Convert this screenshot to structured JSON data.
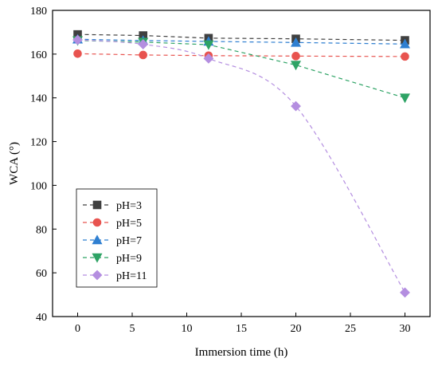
{
  "chart_data": {
    "type": "line",
    "title": "",
    "xlabel": "Immersion time (h)",
    "ylabel": "WCA (°)",
    "xlim": [
      -2.3,
      32.3
    ],
    "ylim": [
      40,
      180
    ],
    "xticks": [
      0,
      5,
      10,
      15,
      20,
      25,
      30
    ],
    "yticks": [
      40,
      60,
      80,
      100,
      120,
      140,
      160,
      180
    ],
    "grid": false,
    "legend_position": "bottom-left",
    "series": [
      {
        "name": "pH=3",
        "color": "#404040",
        "marker": "square",
        "line_style": "dashed",
        "smooth": false,
        "x": [
          0,
          6,
          12,
          20,
          30
        ],
        "y": [
          169,
          168.5,
          167.3,
          167,
          166.3
        ]
      },
      {
        "name": "pH=5",
        "color": "#e8534f",
        "marker": "circle",
        "line_style": "dashed",
        "smooth": false,
        "x": [
          0,
          6,
          12,
          20,
          30
        ],
        "y": [
          160.2,
          159.6,
          159.3,
          159.1,
          158.9
        ]
      },
      {
        "name": "pH=7",
        "color": "#2f7fd1",
        "marker": "triangle-up",
        "line_style": "dashed",
        "smooth": false,
        "x": [
          0,
          6,
          12,
          20,
          30
        ],
        "y": [
          166.8,
          166.2,
          165.8,
          165.3,
          164.6
        ]
      },
      {
        "name": "pH=9",
        "color": "#2ea365",
        "marker": "triangle-down",
        "line_style": "dashed",
        "smooth": false,
        "x": [
          0,
          6,
          12,
          20,
          30
        ],
        "y": [
          166.2,
          165.5,
          164.3,
          155,
          140
        ]
      },
      {
        "name": "pH=11",
        "color": "#b48ee0",
        "marker": "diamond",
        "line_style": "dashed",
        "smooth": true,
        "x": [
          0,
          6,
          12,
          20,
          30
        ],
        "y": [
          166.5,
          164.5,
          158,
          136.2,
          51
        ]
      }
    ]
  }
}
